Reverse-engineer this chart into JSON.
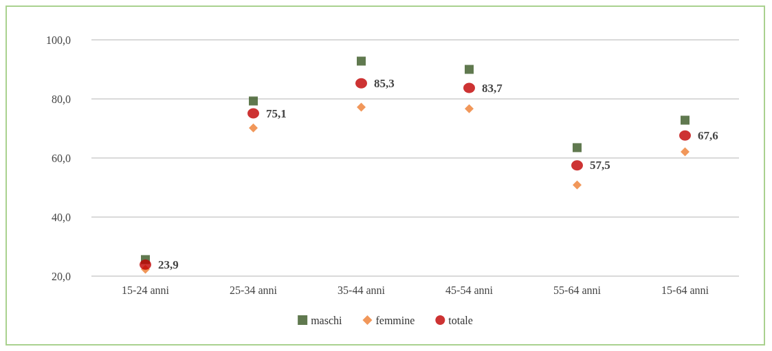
{
  "chart_data": {
    "type": "scatter",
    "categories": [
      "15-24 anni",
      "25-34 anni",
      "35-44 anni",
      "45-54 anni",
      "55-64 anni",
      "15-64 anni"
    ],
    "series": [
      {
        "name": "maschi",
        "color": "#385723",
        "marker": "square",
        "values": [
          25.6,
          79.3,
          92.8,
          90.0,
          63.5,
          72.8
        ]
      },
      {
        "name": "femmine",
        "color": "#ed7d31",
        "marker": "diamond",
        "values": [
          22.3,
          70.2,
          77.2,
          76.7,
          50.9,
          62.1
        ]
      },
      {
        "name": "totale",
        "color": "#c00000",
        "marker": "circle",
        "values": [
          23.9,
          75.1,
          85.3,
          83.7,
          57.5,
          67.6
        ],
        "value_labels": [
          "23,9",
          "75,1",
          "85,3",
          "83,7",
          "57,5",
          "67,6"
        ]
      }
    ],
    "ylim": [
      20,
      100
    ],
    "yticks": [
      {
        "value": 20,
        "label": "20,0"
      },
      {
        "value": 40,
        "label": "40,0"
      },
      {
        "value": 60,
        "label": "60,0"
      },
      {
        "value": 80,
        "label": "80,0"
      },
      {
        "value": 100,
        "label": "100,0"
      }
    ],
    "grid": "y",
    "legend": "bottom"
  }
}
